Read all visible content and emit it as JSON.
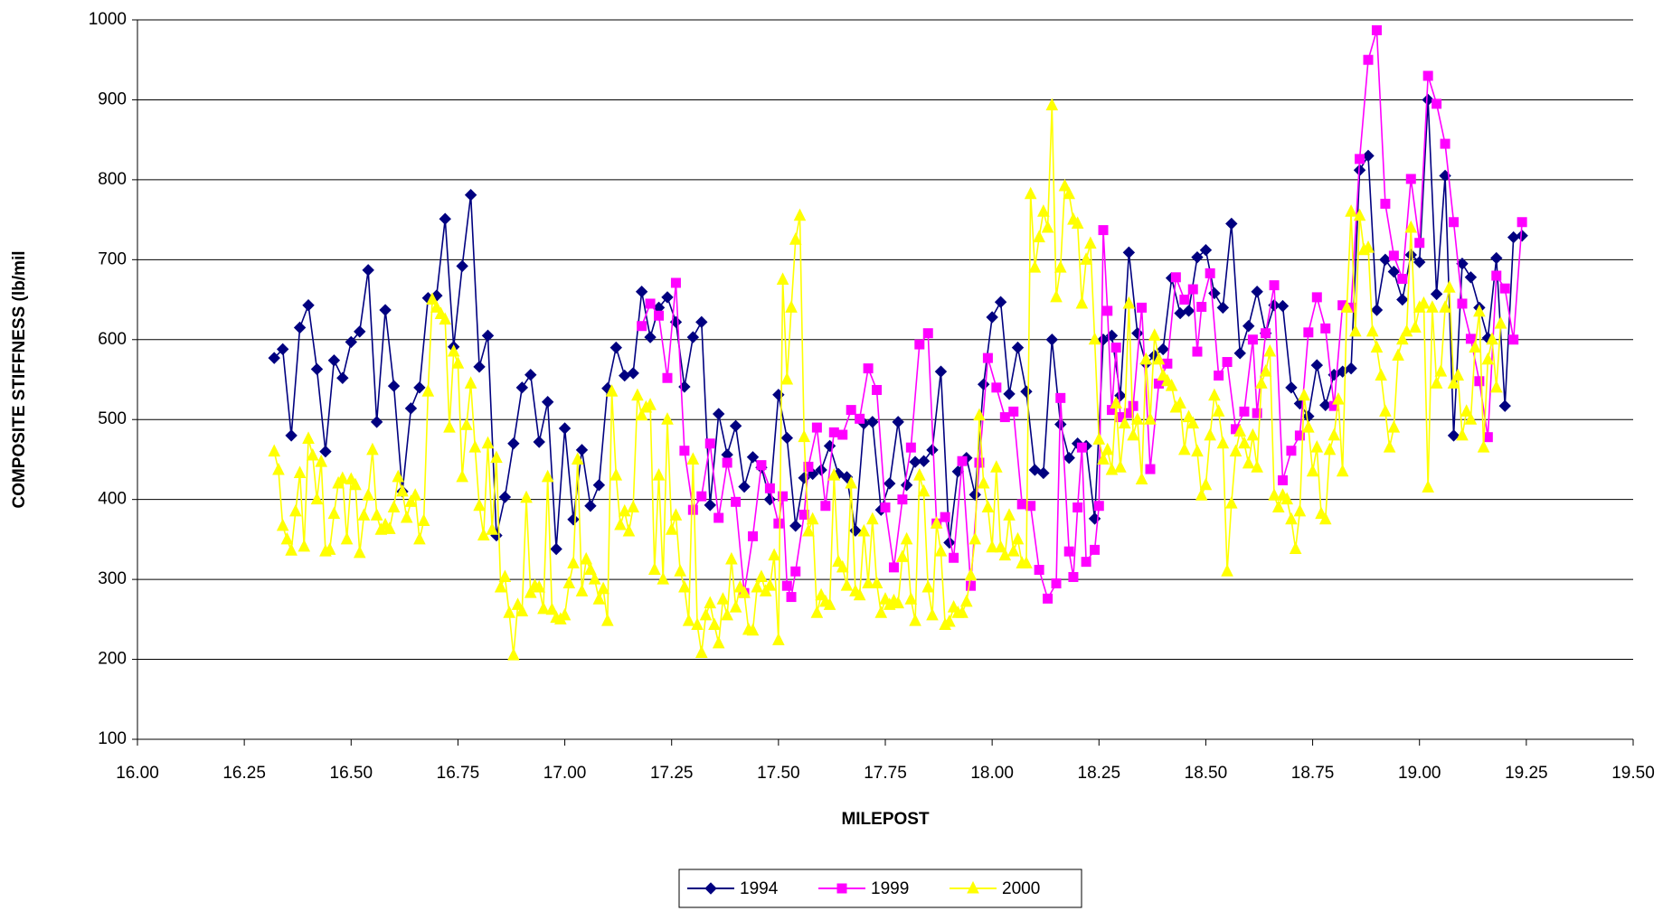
{
  "chart_data": {
    "type": "line",
    "x_label": "MILEPOST",
    "y_label": "COMPOSITE STIFFNESS (lb/mil",
    "xlim": [
      16,
      19.5
    ],
    "ylim": [
      100,
      1000
    ],
    "xticks": [
      {
        "value": 16,
        "label": "16.00"
      },
      {
        "value": 16.25,
        "label": "16.25"
      },
      {
        "value": 16.5,
        "label": "16.50"
      },
      {
        "value": 16.75,
        "label": "16.75"
      },
      {
        "value": 17,
        "label": "17.00"
      },
      {
        "value": 17.25,
        "label": "17.25"
      },
      {
        "value": 17.5,
        "label": "17.50"
      },
      {
        "value": 17.75,
        "label": "17.75"
      },
      {
        "value": 18,
        "label": "18.00"
      },
      {
        "value": 18.25,
        "label": "18.25"
      },
      {
        "value": 18.5,
        "label": "18.50"
      },
      {
        "value": 18.75,
        "label": "18.75"
      },
      {
        "value": 19,
        "label": "19.00"
      },
      {
        "value": 19.25,
        "label": "19.25"
      },
      {
        "value": 19.5,
        "label": "19.50"
      }
    ],
    "yticks": [
      100,
      200,
      300,
      400,
      500,
      600,
      700,
      800,
      900,
      1000
    ],
    "grid": true,
    "legend": "bottom",
    "series": [
      {
        "name": "1994",
        "color": "#000080",
        "marker": "diamond",
        "x": [
          16.32,
          16.34,
          16.36,
          16.38,
          16.4,
          16.42,
          16.44,
          16.46,
          16.48,
          16.5,
          16.52,
          16.54,
          16.56,
          16.58,
          16.6,
          16.62,
          16.64,
          16.66,
          16.68,
          16.7,
          16.72,
          16.74,
          16.76,
          16.78,
          16.8,
          16.82,
          16.84,
          16.86,
          16.88,
          16.9,
          16.92,
          16.94,
          16.96,
          16.98,
          17.0,
          17.02,
          17.04,
          17.06,
          17.08,
          17.1,
          17.12,
          17.14,
          17.16,
          17.18,
          17.2,
          17.22,
          17.24,
          17.26,
          17.28,
          17.3,
          17.32,
          17.34,
          17.36,
          17.38,
          17.4,
          17.42,
          17.44,
          17.46,
          17.48,
          17.5,
          17.52,
          17.54,
          17.56,
          17.58,
          17.6,
          17.62,
          17.64,
          17.66,
          17.68,
          17.7,
          17.72,
          17.74,
          17.76,
          17.78,
          17.8,
          17.82,
          17.84,
          17.86,
          17.88,
          17.9,
          17.92,
          17.94,
          17.96,
          17.98,
          18.0,
          18.02,
          18.04,
          18.06,
          18.08,
          18.1,
          18.12,
          18.14,
          18.16,
          18.18,
          18.2,
          18.22,
          18.24,
          18.26,
          18.28,
          18.3,
          18.32,
          18.34,
          18.36,
          18.38,
          18.4,
          18.42,
          18.44,
          18.46,
          18.48,
          18.5,
          18.52,
          18.54,
          18.56,
          18.58,
          18.6,
          18.62,
          18.64,
          18.66,
          18.68,
          18.7,
          18.72,
          18.74,
          18.76,
          18.78,
          18.8,
          18.82,
          18.84,
          18.86,
          18.88,
          18.9,
          18.92,
          18.94,
          18.96,
          18.98,
          19.0,
          19.02,
          19.04,
          19.06,
          19.08,
          19.1,
          19.12,
          19.14,
          19.16,
          19.18,
          19.2,
          19.22,
          19.24
        ],
        "values": [
          577,
          588,
          480,
          615,
          643,
          563,
          460,
          574,
          552,
          597,
          610,
          687,
          497,
          637,
          542,
          410,
          514,
          540,
          652,
          655,
          751,
          591,
          692,
          781,
          566,
          605,
          355,
          403,
          470,
          540,
          556,
          472,
          522,
          338,
          489,
          375,
          462,
          392,
          418,
          539,
          590,
          555,
          558,
          660,
          603,
          640,
          653,
          622,
          541,
          603,
          622,
          393,
          507,
          456,
          492,
          416,
          453,
          440,
          400,
          531,
          477,
          367,
          427,
          432,
          437,
          467,
          432,
          428,
          361,
          495,
          497,
          387,
          420,
          497,
          418,
          447,
          448,
          462,
          560,
          346,
          435,
          452,
          406,
          544,
          628,
          647,
          532,
          590,
          535,
          437,
          433,
          600,
          494,
          452,
          470,
          467,
          376,
          600,
          605,
          530,
          709,
          608,
          570,
          580,
          588,
          677,
          633,
          636,
          703,
          712,
          658,
          640,
          745,
          583,
          617,
          660,
          608,
          643,
          642,
          540,
          520,
          504,
          568,
          518,
          556,
          560,
          564,
          812,
          830,
          637,
          700,
          685,
          650,
          706,
          697,
          900,
          657,
          805,
          480,
          695,
          678,
          640,
          602,
          702,
          517,
          728,
          730
        ]
      },
      {
        "name": "1999",
        "color": "#FF00FF",
        "marker": "square",
        "x": [
          17.18,
          17.2,
          17.22,
          17.24,
          17.26,
          17.28,
          17.3,
          17.32,
          17.34,
          17.36,
          17.38,
          17.4,
          17.42,
          17.44,
          17.46,
          17.48,
          17.5,
          17.51,
          17.52,
          17.53,
          17.54,
          17.56,
          17.57,
          17.59,
          17.61,
          17.63,
          17.65,
          17.67,
          17.69,
          17.71,
          17.73,
          17.75,
          17.77,
          17.79,
          17.81,
          17.83,
          17.85,
          17.87,
          17.89,
          17.91,
          17.93,
          17.95,
          17.97,
          17.99,
          18.01,
          18.03,
          18.05,
          18.07,
          18.09,
          18.11,
          18.13,
          18.15,
          18.16,
          18.18,
          18.19,
          18.2,
          18.21,
          18.22,
          18.24,
          18.25,
          18.26,
          18.27,
          18.28,
          18.29,
          18.3,
          18.32,
          18.33,
          18.35,
          18.37,
          18.39,
          18.41,
          18.43,
          18.45,
          18.47,
          18.48,
          18.49,
          18.51,
          18.53,
          18.55,
          18.57,
          18.59,
          18.61,
          18.62,
          18.64,
          18.66,
          18.68,
          18.7,
          18.72,
          18.74,
          18.76,
          18.78,
          18.8,
          18.82,
          18.84,
          18.86,
          18.88,
          18.9,
          18.92,
          18.94,
          18.96,
          18.98,
          19.0,
          19.02,
          19.04,
          19.06,
          19.08,
          19.1,
          19.12,
          19.14,
          19.16,
          19.18,
          19.2,
          19.22,
          19.24
        ],
        "values": [
          617,
          645,
          630,
          552,
          671,
          461,
          387,
          404,
          470,
          377,
          446,
          397,
          283,
          354,
          443,
          414,
          370,
          404,
          292,
          278,
          310,
          381,
          441,
          490,
          392,
          484,
          481,
          512,
          501,
          564,
          537,
          390,
          315,
          400,
          465,
          594,
          608,
          370,
          378,
          327,
          448,
          292,
          446,
          577,
          540,
          503,
          510,
          394,
          392,
          312,
          276,
          295,
          527,
          335,
          303,
          390,
          465,
          322,
          337,
          392,
          737,
          636,
          512,
          590,
          503,
          508,
          517,
          640,
          438,
          545,
          570,
          678,
          650,
          663,
          585,
          641,
          683,
          555,
          572,
          488,
          510,
          600,
          508,
          608,
          668,
          424,
          461,
          480,
          609,
          653,
          614,
          517,
          643,
          640,
          826,
          950,
          987,
          770,
          705,
          676,
          801,
          721,
          930,
          895,
          845,
          747,
          645,
          601,
          548,
          478,
          680,
          664,
          600,
          747
        ]
      },
      {
        "name": "2000",
        "color": "#FFFF00",
        "marker": "triangle",
        "x": [
          16.32,
          16.33,
          16.34,
          16.35,
          16.36,
          16.37,
          16.38,
          16.39,
          16.4,
          16.41,
          16.42,
          16.43,
          16.44,
          16.45,
          16.46,
          16.47,
          16.48,
          16.49,
          16.5,
          16.51,
          16.52,
          16.53,
          16.54,
          16.55,
          16.56,
          16.57,
          16.58,
          16.59,
          16.6,
          16.61,
          16.62,
          16.63,
          16.64,
          16.65,
          16.66,
          16.67,
          16.68,
          16.69,
          16.7,
          16.71,
          16.72,
          16.73,
          16.74,
          16.75,
          16.76,
          16.77,
          16.78,
          16.79,
          16.8,
          16.81,
          16.82,
          16.83,
          16.84,
          16.85,
          16.86,
          16.87,
          16.88,
          16.89,
          16.9,
          16.91,
          16.92,
          16.93,
          16.94,
          16.95,
          16.96,
          16.97,
          16.98,
          16.99,
          17.0,
          17.01,
          17.02,
          17.03,
          17.04,
          17.05,
          17.06,
          17.07,
          17.08,
          17.09,
          17.1,
          17.11,
          17.12,
          17.13,
          17.14,
          17.15,
          17.16,
          17.17,
          17.18,
          17.19,
          17.2,
          17.21,
          17.22,
          17.23,
          17.24,
          17.25,
          17.26,
          17.27,
          17.28,
          17.29,
          17.3,
          17.31,
          17.32,
          17.33,
          17.34,
          17.35,
          17.36,
          17.37,
          17.38,
          17.39,
          17.4,
          17.41,
          17.42,
          17.43,
          17.44,
          17.45,
          17.46,
          17.47,
          17.48,
          17.49,
          17.5,
          17.51,
          17.52,
          17.53,
          17.54,
          17.55,
          17.56,
          17.57,
          17.58,
          17.59,
          17.6,
          17.61,
          17.62,
          17.63,
          17.64,
          17.65,
          17.66,
          17.67,
          17.68,
          17.69,
          17.7,
          17.71,
          17.72,
          17.73,
          17.74,
          17.75,
          17.76,
          17.77,
          17.78,
          17.79,
          17.8,
          17.81,
          17.82,
          17.83,
          17.84,
          17.85,
          17.86,
          17.87,
          17.88,
          17.89,
          17.9,
          17.91,
          17.92,
          17.93,
          17.94,
          17.95,
          17.96,
          17.97,
          17.98,
          17.99,
          18.0,
          18.01,
          18.02,
          18.03,
          18.04,
          18.05,
          18.06,
          18.07,
          18.08,
          18.09,
          18.1,
          18.11,
          18.12,
          18.13,
          18.14,
          18.15,
          18.16,
          18.17,
          18.18,
          18.19,
          18.2,
          18.21,
          18.22,
          18.23,
          18.24,
          18.25,
          18.26,
          18.27,
          18.28,
          18.29,
          18.3,
          18.31,
          18.32,
          18.33,
          18.34,
          18.35,
          18.36,
          18.37,
          18.38,
          18.39,
          18.4,
          18.41,
          18.42,
          18.43,
          18.44,
          18.45,
          18.46,
          18.47,
          18.48,
          18.49,
          18.5,
          18.51,
          18.52,
          18.53,
          18.54,
          18.55,
          18.56,
          18.57,
          18.58,
          18.59,
          18.6,
          18.61,
          18.62,
          18.63,
          18.64,
          18.65,
          18.66,
          18.67,
          18.68,
          18.69,
          18.7,
          18.71,
          18.72,
          18.73,
          18.74,
          18.75,
          18.76,
          18.77,
          18.78,
          18.79,
          18.8,
          18.81,
          18.82,
          18.83,
          18.84,
          18.85,
          18.86,
          18.87,
          18.88,
          18.89,
          18.9,
          18.91,
          18.92,
          18.93,
          18.94,
          18.95,
          18.96,
          18.97,
          18.98,
          18.99,
          19.0,
          19.01,
          19.02,
          19.03,
          19.04,
          19.05,
          19.06,
          19.07,
          19.08,
          19.09,
          19.1,
          19.11,
          19.12,
          19.13,
          19.14,
          19.15,
          19.16,
          19.17,
          19.18,
          19.19
        ],
        "values": [
          460,
          437,
          367,
          350,
          336,
          385,
          433,
          341,
          476,
          455,
          400,
          447,
          335,
          337,
          382,
          420,
          426,
          350,
          425,
          418,
          333,
          380,
          405,
          462,
          380,
          362,
          368,
          363,
          390,
          428,
          410,
          377,
          397,
          405,
          350,
          373,
          535,
          650,
          640,
          632,
          625,
          490,
          585,
          570,
          428,
          493,
          545,
          465,
          392,
          355,
          470,
          362,
          452,
          290,
          303,
          258,
          205,
          268,
          260,
          402,
          283,
          292,
          290,
          263,
          428,
          262,
          252,
          250,
          255,
          295,
          320,
          450,
          285,
          325,
          312,
          300,
          275,
          288,
          248,
          535,
          430,
          368,
          385,
          360,
          390,
          530,
          505,
          515,
          518,
          312,
          430,
          300,
          500,
          362,
          380,
          310,
          290,
          248,
          450,
          243,
          208,
          255,
          270,
          243,
          220,
          275,
          255,
          325,
          265,
          290,
          283,
          237,
          236,
          290,
          303,
          285,
          292,
          330,
          224,
          675,
          550,
          640,
          725,
          755,
          478,
          360,
          375,
          258,
          280,
          272,
          268,
          430,
          322,
          315,
          292,
          420,
          285,
          280,
          360,
          295,
          375,
          295,
          258,
          275,
          268,
          273,
          270,
          328,
          350,
          275,
          248,
          430,
          410,
          290,
          255,
          370,
          335,
          243,
          247,
          265,
          258,
          258,
          272,
          305,
          350,
          505,
          420,
          390,
          340,
          440,
          340,
          330,
          380,
          335,
          350,
          320,
          320,
          782,
          690,
          728,
          760,
          740,
          893,
          653,
          690,
          792,
          782,
          750,
          745,
          645,
          700,
          720,
          600,
          475,
          450,
          462,
          437,
          520,
          440,
          495,
          645,
          480,
          500,
          425,
          575,
          500,
          605,
          575,
          555,
          548,
          542,
          515,
          520,
          462,
          503,
          495,
          460,
          405,
          418,
          480,
          530,
          510,
          470,
          310,
          395,
          460,
          485,
          470,
          445,
          480,
          440,
          545,
          560,
          585,
          405,
          390,
          405,
          400,
          375,
          338,
          385,
          530,
          490,
          435,
          465,
          382,
          375,
          462,
          480,
          525,
          435,
          640,
          760,
          610,
          755,
          712,
          715,
          610,
          590,
          555,
          510,
          465,
          490,
          580,
          600,
          610,
          740,
          615,
          640,
          645,
          415,
          640,
          545,
          560,
          640,
          665,
          545,
          555,
          480,
          510,
          500,
          590,
          635,
          465,
          575,
          600,
          540,
          620
        ]
      }
    ]
  }
}
